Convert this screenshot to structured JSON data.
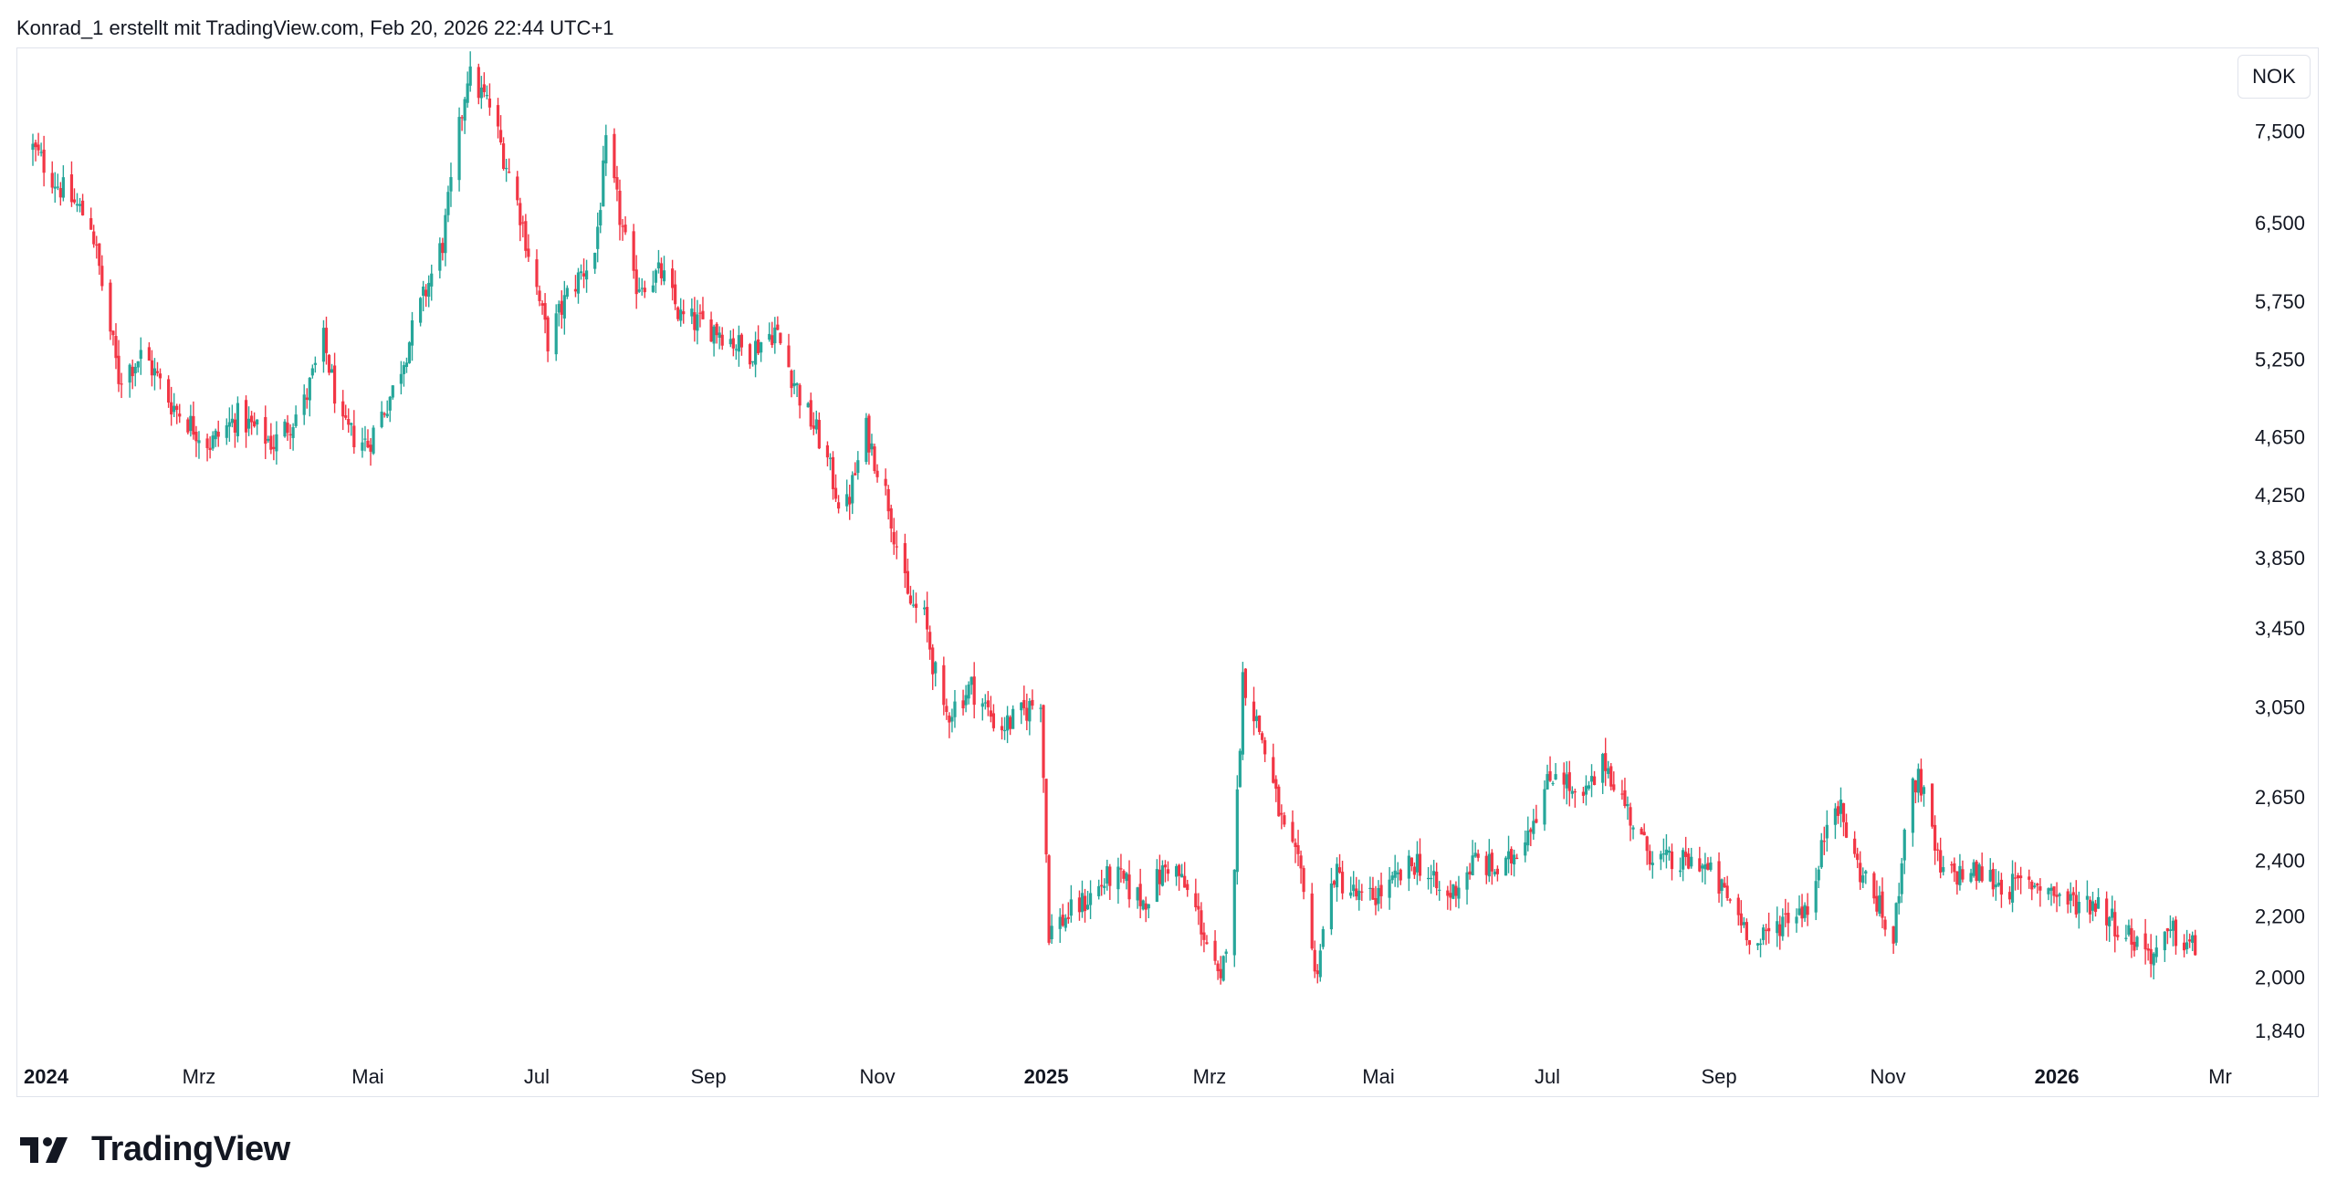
{
  "header": {
    "attribution": "Konrad_1 erstellt mit TradingView.com, Feb 20, 2026 22:44 UTC+1"
  },
  "currency_badge": "NOK",
  "footer": {
    "brand": "TradingView",
    "logo_icon": "tradingview-logo-icon"
  },
  "colors": {
    "up": "#26a69a",
    "down": "#f23645",
    "grid": "#e0e3eb",
    "text": "#131722"
  },
  "chart_data": {
    "type": "candlestick",
    "scale": "log",
    "currency": "NOK",
    "y_ticks": [
      {
        "value": 7500,
        "label": "7,500"
      },
      {
        "value": 6500,
        "label": "6,500"
      },
      {
        "value": 5750,
        "label": "5,750"
      },
      {
        "value": 5250,
        "label": "5,250"
      },
      {
        "value": 4650,
        "label": "4,650"
      },
      {
        "value": 4250,
        "label": "4,250"
      },
      {
        "value": 3850,
        "label": "3,850"
      },
      {
        "value": 3450,
        "label": "3,450"
      },
      {
        "value": 3050,
        "label": "3,050"
      },
      {
        "value": 2650,
        "label": "2,650"
      },
      {
        "value": 2400,
        "label": "2,400"
      },
      {
        "value": 2200,
        "label": "2,200"
      },
      {
        "value": 2000,
        "label": "2,000"
      },
      {
        "value": 1840,
        "label": "1,840"
      }
    ],
    "x_ticks": [
      {
        "date": "2024-01",
        "label": "2024",
        "bold": true
      },
      {
        "date": "2024-03",
        "label": "Mrz",
        "bold": false
      },
      {
        "date": "2024-05",
        "label": "Mai",
        "bold": false
      },
      {
        "date": "2024-07",
        "label": "Jul",
        "bold": false
      },
      {
        "date": "2024-09",
        "label": "Sep",
        "bold": false
      },
      {
        "date": "2024-11",
        "label": "Nov",
        "bold": false
      },
      {
        "date": "2025-01",
        "label": "2025",
        "bold": true
      },
      {
        "date": "2025-03",
        "label": "Mrz",
        "bold": false
      },
      {
        "date": "2025-05",
        "label": "Mai",
        "bold": false
      },
      {
        "date": "2025-07",
        "label": "Jul",
        "bold": false
      },
      {
        "date": "2025-09",
        "label": "Sep",
        "bold": false
      },
      {
        "date": "2025-11",
        "label": "Nov",
        "bold": false
      },
      {
        "date": "2026-01",
        "label": "2026",
        "bold": true
      },
      {
        "date": "2026-03",
        "label": "Mr",
        "bold": false
      }
    ],
    "price_path": [
      [
        "2024-01-01",
        7300
      ],
      [
        "2024-01-10",
        6900
      ],
      [
        "2024-01-22",
        6500
      ],
      [
        "2024-02-01",
        5100
      ],
      [
        "2024-02-10",
        5300
      ],
      [
        "2024-02-20",
        4900
      ],
      [
        "2024-03-05",
        4600
      ],
      [
        "2024-03-15",
        4800
      ],
      [
        "2024-03-28",
        4600
      ],
      [
        "2024-04-08",
        4900
      ],
      [
        "2024-04-15",
        5400
      ],
      [
        "2024-04-22",
        4700
      ],
      [
        "2024-05-01",
        4600
      ],
      [
        "2024-05-10",
        5000
      ],
      [
        "2024-05-20",
        5700
      ],
      [
        "2024-05-28",
        6300
      ],
      [
        "2024-06-06",
        8200
      ],
      [
        "2024-06-14",
        7800
      ],
      [
        "2024-06-25",
        6600
      ],
      [
        "2024-07-05",
        5400
      ],
      [
        "2024-07-12",
        5800
      ],
      [
        "2024-07-22",
        6200
      ],
      [
        "2024-07-26",
        7300
      ],
      [
        "2024-08-05",
        5900
      ],
      [
        "2024-08-15",
        6000
      ],
      [
        "2024-08-22",
        5600
      ],
      [
        "2024-09-05",
        5500
      ],
      [
        "2024-09-15",
        5300
      ],
      [
        "2024-09-25",
        5500
      ],
      [
        "2024-10-05",
        4900
      ],
      [
        "2024-10-12",
        4600
      ],
      [
        "2024-10-20",
        4100
      ],
      [
        "2024-10-28",
        4700
      ],
      [
        "2024-11-05",
        4200
      ],
      [
        "2024-11-12",
        3600
      ],
      [
        "2024-11-18",
        3500
      ],
      [
        "2024-11-25",
        3000
      ],
      [
        "2024-12-05",
        3150
      ],
      [
        "2024-12-15",
        2950
      ],
      [
        "2024-12-22",
        3000
      ],
      [
        "2024-12-30",
        3100
      ],
      [
        "2025-01-02",
        2150
      ],
      [
        "2025-01-15",
        2250
      ],
      [
        "2025-01-25",
        2350
      ],
      [
        "2025-02-05",
        2250
      ],
      [
        "2025-02-15",
        2400
      ],
      [
        "2025-02-25",
        2200
      ],
      [
        "2025-03-05",
        1960
      ],
      [
        "2025-03-10",
        2400
      ],
      [
        "2025-03-13",
        3200
      ],
      [
        "2025-03-20",
        2900
      ],
      [
        "2025-03-28",
        2500
      ],
      [
        "2025-04-05",
        2300
      ],
      [
        "2025-04-08",
        2000
      ],
      [
        "2025-04-15",
        2350
      ],
      [
        "2025-04-25",
        2250
      ],
      [
        "2025-05-05",
        2300
      ],
      [
        "2025-05-15",
        2400
      ],
      [
        "2025-05-25",
        2250
      ],
      [
        "2025-06-05",
        2400
      ],
      [
        "2025-06-15",
        2350
      ],
      [
        "2025-06-25",
        2550
      ],
      [
        "2025-07-05",
        2800
      ],
      [
        "2025-07-12",
        2600
      ],
      [
        "2025-07-22",
        2800
      ],
      [
        "2025-08-05",
        2450
      ],
      [
        "2025-08-15",
        2380
      ],
      [
        "2025-08-25",
        2400
      ],
      [
        "2025-09-05",
        2250
      ],
      [
        "2025-09-15",
        2100
      ],
      [
        "2025-09-25",
        2200
      ],
      [
        "2025-10-05",
        2250
      ],
      [
        "2025-10-12",
        2700
      ],
      [
        "2025-10-20",
        2400
      ],
      [
        "2025-10-28",
        2250
      ],
      [
        "2025-11-03",
        2100
      ],
      [
        "2025-11-07",
        2550
      ],
      [
        "2025-11-12",
        2750
      ],
      [
        "2025-11-20",
        2350
      ],
      [
        "2025-12-05",
        2350
      ],
      [
        "2025-12-15",
        2300
      ],
      [
        "2025-12-25",
        2320
      ],
      [
        "2026-01-05",
        2250
      ],
      [
        "2026-01-15",
        2250
      ],
      [
        "2026-01-25",
        2150
      ],
      [
        "2026-02-05",
        2070
      ],
      [
        "2026-02-12",
        2140
      ],
      [
        "2026-02-20",
        2090
      ]
    ]
  }
}
